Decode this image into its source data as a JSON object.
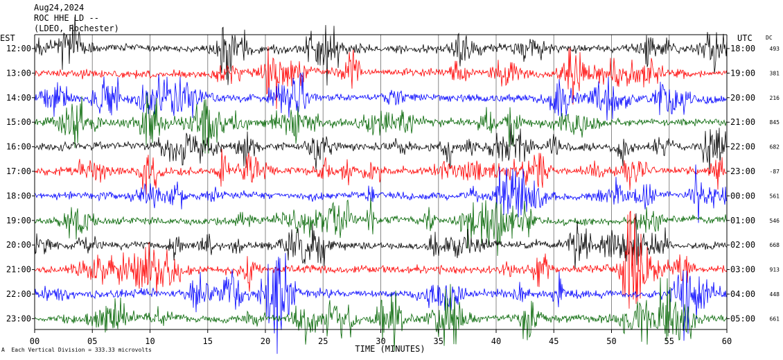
{
  "header": {
    "line1": "Aug24,2024",
    "line2": "ROC HHE LD --",
    "line3": "(LDEO, Rochester)"
  },
  "footer": {
    "glyph": "A",
    "text": "Each Vertical Division = 333.33 microvolts"
  },
  "chart_data": {
    "type": "line",
    "title": "",
    "xlabel": "TIME (MINUTES)",
    "left_axis_label": "EST",
    "right_axis_label": "UTC",
    "right_extra_label": "DC",
    "xlim": [
      0,
      60
    ],
    "x_ticks": [
      0,
      5,
      10,
      15,
      20,
      25,
      30,
      35,
      40,
      45,
      50,
      55,
      60
    ],
    "x_tick_labels": [
      "00",
      "05",
      "10",
      "15",
      "20",
      "25",
      "30",
      "35",
      "40",
      "45",
      "50",
      "55",
      "60"
    ],
    "vertical_grid": true,
    "trace_colors": [
      "#000000",
      "#ff0000",
      "#0000ff",
      "#006400"
    ],
    "rows": [
      {
        "est": "12:00",
        "utc": "18:00",
        "dc": "493",
        "color": "#000000"
      },
      {
        "est": "13:00",
        "utc": "19:00",
        "dc": "381",
        "color": "#ff0000"
      },
      {
        "est": "14:00",
        "utc": "20:00",
        "dc": "216",
        "color": "#0000ff"
      },
      {
        "est": "15:00",
        "utc": "21:00",
        "dc": "845",
        "color": "#006400"
      },
      {
        "est": "16:00",
        "utc": "22:00",
        "dc": "682",
        "color": "#000000"
      },
      {
        "est": "17:00",
        "utc": "23:00",
        "dc": "-87",
        "color": "#ff0000"
      },
      {
        "est": "18:00",
        "utc": "00:00",
        "dc": "561",
        "color": "#0000ff"
      },
      {
        "est": "19:00",
        "utc": "01:00",
        "dc": "546",
        "color": "#006400"
      },
      {
        "est": "20:00",
        "utc": "02:00",
        "dc": "668",
        "color": "#000000"
      },
      {
        "est": "21:00",
        "utc": "03:00",
        "dc": "913",
        "color": "#ff0000"
      },
      {
        "est": "22:00",
        "utc": "04:00",
        "dc": "448",
        "color": "#0000ff"
      },
      {
        "est": "23:00",
        "utc": "05:00",
        "dc": "661",
        "color": "#006400"
      }
    ]
  }
}
